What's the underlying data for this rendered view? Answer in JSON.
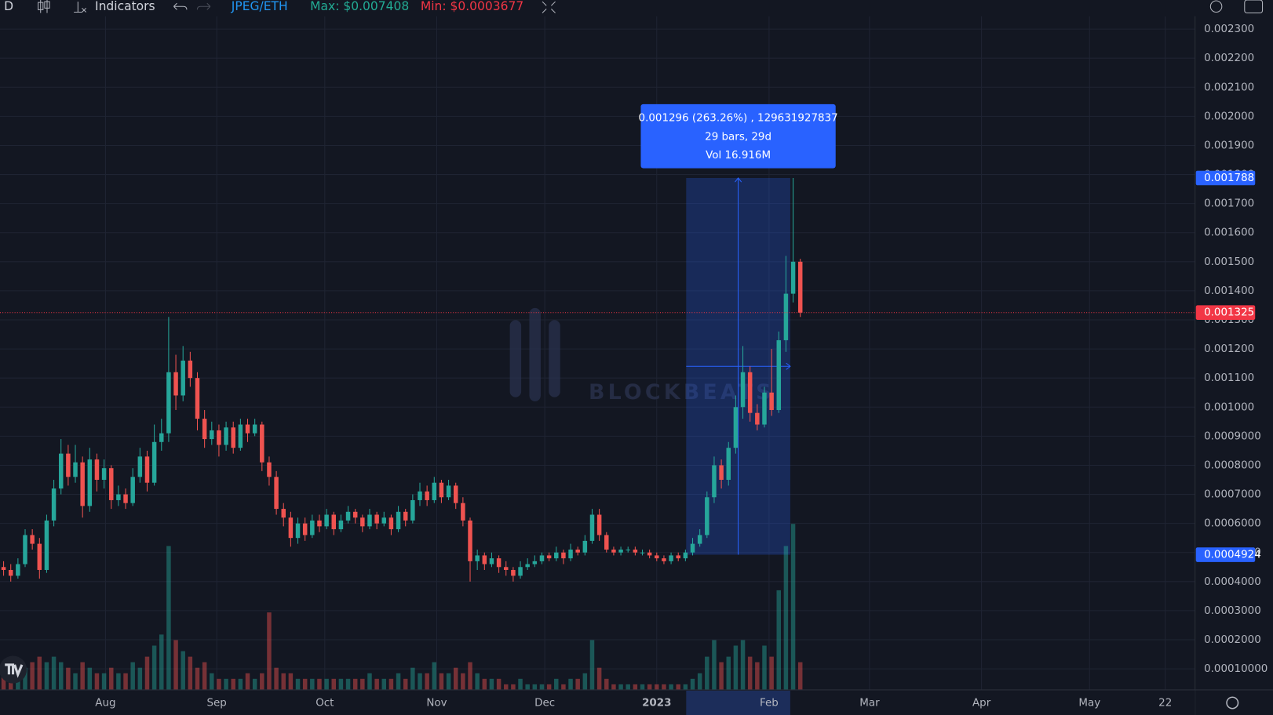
{
  "chart_data": {
    "type": "candlestick",
    "toolbar": {
      "interval": "D",
      "indicators": "Indicators",
      "symbol": "JPEG/ETH",
      "max": "Max: $0.007408",
      "min": "Min: $0.0003677"
    },
    "watermark": "BLOCKBEATS",
    "up_color": "#26a69a",
    "down_color": "#ef5350",
    "xlim": [
      0,
      166.5
    ],
    "xticks": [
      {
        "value": 14.7,
        "label": "Aug"
      },
      {
        "value": 30.2,
        "label": "Sep"
      },
      {
        "value": 45.25,
        "label": "Oct"
      },
      {
        "value": 60.85,
        "label": "Nov"
      },
      {
        "value": 75.9,
        "label": "Dec"
      },
      {
        "value": 91.5,
        "label": "2023"
      },
      {
        "value": 107.15,
        "label": "Feb"
      },
      {
        "value": 121.15,
        "label": "Mar"
      },
      {
        "value": 136.75,
        "label": "Apr"
      },
      {
        "value": 151.8,
        "label": "May"
      },
      {
        "value": 162.35,
        "label": "22"
      }
    ],
    "ylim": [
      2.76e-05,
      0.0024
    ],
    "yticks": [
      {
        "value": 0.0001,
        "label": "0.00010000"
      },
      {
        "value": 0.0002,
        "label": "0.0002000"
      },
      {
        "value": 0.0003,
        "label": "0.0003000"
      },
      {
        "value": 0.0004,
        "label": "0.0004000"
      },
      {
        "value": 0.0005,
        "label": "0.0005000"
      },
      {
        "value": 0.0006,
        "label": "0.0006000"
      },
      {
        "value": 0.0007,
        "label": "0.0007000"
      },
      {
        "value": 0.0008,
        "label": "0.0008000"
      },
      {
        "value": 0.0009,
        "label": "0.0009000"
      },
      {
        "value": 0.001,
        "label": "0.001000"
      },
      {
        "value": 0.0011,
        "label": "0.001100"
      },
      {
        "value": 0.0012,
        "label": "0.001200"
      },
      {
        "value": 0.0013,
        "label": "0.001300"
      },
      {
        "value": 0.0014,
        "label": "0.001400"
      },
      {
        "value": 0.0015,
        "label": "0.001500"
      },
      {
        "value": 0.0016,
        "label": "0.001600"
      },
      {
        "value": 0.0017,
        "label": "0.001700"
      },
      {
        "value": 0.0018,
        "label": "0.001800"
      },
      {
        "value": 0.0019,
        "label": "0.001900"
      },
      {
        "value": 0.002,
        "label": "0.002000"
      },
      {
        "value": 0.0021,
        "label": "0.002100"
      },
      {
        "value": 0.0022,
        "label": "0.002200"
      },
      {
        "value": 0.0023,
        "label": "0.002300"
      }
    ],
    "grid": true,
    "ohlc": [
      [
        0.00045,
        0.00047,
        0.00042,
        0.00044
      ],
      [
        0.00044,
        0.00046,
        0.0004,
        0.00042
      ],
      [
        0.00042,
        0.00048,
        0.00041,
        0.00046
      ],
      [
        0.00046,
        0.00058,
        0.00045,
        0.00056
      ],
      [
        0.00056,
        0.00058,
        0.00051,
        0.00053
      ],
      [
        0.00053,
        0.00055,
        0.00041,
        0.00044
      ],
      [
        0.00044,
        0.00063,
        0.00043,
        0.00061
      ],
      [
        0.00061,
        0.00075,
        0.00059,
        0.00072
      ],
      [
        0.00072,
        0.00089,
        0.0007,
        0.00084
      ],
      [
        0.00084,
        0.00087,
        0.00073,
        0.00076
      ],
      [
        0.00076,
        0.00087,
        0.00074,
        0.00081
      ],
      [
        0.00081,
        0.00083,
        0.00062,
        0.00066
      ],
      [
        0.00066,
        0.00086,
        0.00064,
        0.00082
      ],
      [
        0.00082,
        0.00084,
        0.00071,
        0.00075
      ],
      [
        0.00075,
        0.00082,
        0.00072,
        0.00079
      ],
      [
        0.00079,
        0.0008,
        0.00065,
        0.00068
      ],
      [
        0.00068,
        0.00073,
        0.00066,
        0.0007
      ],
      [
        0.0007,
        0.00072,
        0.00065,
        0.00067
      ],
      [
        0.00067,
        0.00079,
        0.00066,
        0.00076
      ],
      [
        0.00076,
        0.00086,
        0.00074,
        0.00083
      ],
      [
        0.00083,
        0.00085,
        0.00071,
        0.00074
      ],
      [
        0.00074,
        0.00094,
        0.00073,
        0.00088
      ],
      [
        0.00088,
        0.00096,
        0.00085,
        0.00091
      ],
      [
        0.00091,
        0.00131,
        0.00088,
        0.00112
      ],
      [
        0.00112,
        0.00118,
        0.00099,
        0.00104
      ],
      [
        0.00104,
        0.00121,
        0.00102,
        0.00116
      ],
      [
        0.00116,
        0.00119,
        0.00107,
        0.0011
      ],
      [
        0.0011,
        0.00112,
        0.00092,
        0.00096
      ],
      [
        0.00096,
        0.00099,
        0.00086,
        0.00089
      ],
      [
        0.00089,
        0.00095,
        0.00087,
        0.00092
      ],
      [
        0.00092,
        0.00094,
        0.00083,
        0.00087
      ],
      [
        0.00087,
        0.00095,
        0.00085,
        0.00093
      ],
      [
        0.00093,
        0.00095,
        0.00084,
        0.00086
      ],
      [
        0.00086,
        0.00096,
        0.00085,
        0.00094
      ],
      [
        0.00094,
        0.00096,
        0.00088,
        0.00091
      ],
      [
        0.00091,
        0.00096,
        0.0009,
        0.00094
      ],
      [
        0.00094,
        0.00095,
        0.00078,
        0.00081
      ],
      [
        0.00081,
        0.00083,
        0.00073,
        0.00076
      ],
      [
        0.00076,
        0.00078,
        0.00063,
        0.00065
      ],
      [
        0.00065,
        0.00067,
        0.00059,
        0.00062
      ],
      [
        0.00062,
        0.00064,
        0.00052,
        0.00055
      ],
      [
        0.00055,
        0.00062,
        0.00053,
        0.0006
      ],
      [
        0.0006,
        0.00062,
        0.00054,
        0.00056
      ],
      [
        0.00056,
        0.00063,
        0.00055,
        0.00061
      ],
      [
        0.00061,
        0.00063,
        0.00057,
        0.00059
      ],
      [
        0.00059,
        0.00065,
        0.00058,
        0.00063
      ],
      [
        0.00063,
        0.00064,
        0.00056,
        0.00058
      ],
      [
        0.00058,
        0.00063,
        0.00057,
        0.00061
      ],
      [
        0.00061,
        0.00066,
        0.0006,
        0.00064
      ],
      [
        0.00064,
        0.00065,
        0.0006,
        0.00062
      ],
      [
        0.00062,
        0.00063,
        0.00057,
        0.00059
      ],
      [
        0.00059,
        0.00065,
        0.00058,
        0.00063
      ],
      [
        0.00063,
        0.00064,
        0.00058,
        0.0006
      ],
      [
        0.0006,
        0.00064,
        0.00059,
        0.00062
      ],
      [
        0.00062,
        0.00063,
        0.00056,
        0.00058
      ],
      [
        0.00058,
        0.00066,
        0.00057,
        0.00064
      ],
      [
        0.00064,
        0.00065,
        0.00059,
        0.00061
      ],
      [
        0.00061,
        0.0007,
        0.0006,
        0.00068
      ],
      [
        0.00068,
        0.00074,
        0.00066,
        0.00071
      ],
      [
        0.00071,
        0.00073,
        0.00066,
        0.00068
      ],
      [
        0.00068,
        0.00076,
        0.00067,
        0.00074
      ],
      [
        0.00074,
        0.00075,
        0.00067,
        0.00069
      ],
      [
        0.00069,
        0.00075,
        0.00068,
        0.00073
      ],
      [
        0.00073,
        0.00074,
        0.00065,
        0.00067
      ],
      [
        0.00067,
        0.00069,
        0.00059,
        0.00061
      ],
      [
        0.00061,
        0.00062,
        0.0004,
        0.00047
      ],
      [
        0.00047,
        0.00051,
        0.00044,
        0.00049
      ],
      [
        0.00049,
        0.0005,
        0.00044,
        0.00046
      ],
      [
        0.00046,
        0.0005,
        0.00045,
        0.00048
      ],
      [
        0.00048,
        0.00049,
        0.00043,
        0.00045
      ],
      [
        0.00045,
        0.00047,
        0.00042,
        0.00044
      ],
      [
        0.00044,
        0.00045,
        0.0004,
        0.00042
      ],
      [
        0.00042,
        0.00047,
        0.00041,
        0.00045
      ],
      [
        0.00045,
        0.00048,
        0.00044,
        0.00046
      ],
      [
        0.00046,
        0.00049,
        0.00045,
        0.00047
      ],
      [
        0.00047,
        0.0005,
        0.00046,
        0.00049
      ],
      [
        0.00049,
        0.0005,
        0.00047,
        0.00048
      ],
      [
        0.00048,
        0.00052,
        0.00047,
        0.0005
      ],
      [
        0.0005,
        0.00051,
        0.00046,
        0.00048
      ],
      [
        0.00048,
        0.00053,
        0.00047,
        0.00051
      ],
      [
        0.00051,
        0.00052,
        0.00049,
        0.0005
      ],
      [
        0.0005,
        0.00056,
        0.00049,
        0.00054
      ],
      [
        0.00054,
        0.00065,
        0.00053,
        0.00063
      ],
      [
        0.00063,
        0.00065,
        0.00054,
        0.00056
      ],
      [
        0.00056,
        0.00057,
        0.0005,
        0.00051
      ],
      [
        0.00051,
        0.00052,
        0.00049,
        0.0005
      ],
      [
        0.0005,
        0.00052,
        0.00049,
        0.00051
      ],
      [
        0.00051,
        0.00052,
        0.0005,
        0.00051
      ],
      [
        0.00051,
        0.00052,
        0.00049,
        0.0005
      ],
      [
        0.0005,
        0.00051,
        0.00049,
        0.0005
      ],
      [
        0.0005,
        0.00051,
        0.00048,
        0.00049
      ],
      [
        0.00049,
        0.0005,
        0.00047,
        0.00048
      ],
      [
        0.00048,
        0.00049,
        0.00046,
        0.00047
      ],
      [
        0.00047,
        0.0005,
        0.00046,
        0.00049
      ],
      [
        0.00049,
        0.0005,
        0.00047,
        0.00048
      ],
      [
        0.00048,
        0.00051,
        0.00047,
        0.0005
      ],
      [
        0.0005,
        0.00055,
        0.00049,
        0.00053
      ],
      [
        0.00053,
        0.00058,
        0.00052,
        0.00056
      ],
      [
        0.00056,
        0.00071,
        0.00055,
        0.00069
      ],
      [
        0.00069,
        0.00083,
        0.00067,
        0.0008
      ],
      [
        0.0008,
        0.00082,
        0.00072,
        0.00075
      ],
      [
        0.00075,
        0.00088,
        0.00073,
        0.00086
      ],
      [
        0.00086,
        0.00104,
        0.00084,
        0.001
      ],
      [
        0.001,
        0.00121,
        0.00096,
        0.00112
      ],
      [
        0.00112,
        0.00114,
        0.00095,
        0.00098
      ],
      [
        0.00098,
        0.00101,
        0.00092,
        0.00094
      ],
      [
        0.00094,
        0.00107,
        0.00093,
        0.00105
      ],
      [
        0.00105,
        0.0012,
        0.00097,
        0.00099
      ],
      [
        0.00099,
        0.00126,
        0.00098,
        0.00123
      ],
      [
        0.00123,
        0.00152,
        0.00119,
        0.00139
      ],
      [
        0.00139,
        0.001788,
        0.00136,
        0.0015
      ],
      [
        0.0015,
        0.00151,
        0.00131,
        0.001325
      ]
    ],
    "volume": [
      0.4,
      0.3,
      0.5,
      0.4,
      0.5,
      0.6,
      0.5,
      0.6,
      0.5,
      0.4,
      0.3,
      0.5,
      0.4,
      0.3,
      0.3,
      0.4,
      0.3,
      0.3,
      0.5,
      0.4,
      0.6,
      0.8,
      1.0,
      2.6,
      0.9,
      0.7,
      0.6,
      0.4,
      0.5,
      0.3,
      0.2,
      0.2,
      0.2,
      0.2,
      0.3,
      0.2,
      0.3,
      1.4,
      0.4,
      0.3,
      0.3,
      0.2,
      0.2,
      0.2,
      0.2,
      0.2,
      0.2,
      0.2,
      0.2,
      0.2,
      0.2,
      0.3,
      0.2,
      0.2,
      0.2,
      0.3,
      0.2,
      0.4,
      0.3,
      0.3,
      0.5,
      0.3,
      0.3,
      0.4,
      0.3,
      0.5,
      0.3,
      0.2,
      0.2,
      0.2,
      0.1,
      0.1,
      0.2,
      0.1,
      0.1,
      0.1,
      0.1,
      0.2,
      0.1,
      0.2,
      0.2,
      0.3,
      0.9,
      0.4,
      0.2,
      0.1,
      0.1,
      0.1,
      0.1,
      0.1,
      0.1,
      0.1,
      0.1,
      0.1,
      0.1,
      0.1,
      0.2,
      0.3,
      0.6,
      0.9,
      0.5,
      0.6,
      0.8,
      0.9,
      0.6,
      0.5,
      0.8,
      0.6,
      1.8,
      2.6,
      3.0,
      0.5
    ],
    "volume_lim": [
      0,
      4
    ],
    "price_labels": [
      {
        "value": 0.001788,
        "color": "#2962ff"
      },
      {
        "value": 0.001325,
        "color": "#f23645"
      },
      {
        "value": 0.0004924,
        "color": "#2962ff"
      }
    ],
    "measure": {
      "x_from": 95.6,
      "x_to": 110.1,
      "price_from": 0.0004924,
      "price_to": 0.001788,
      "lines": [
        "0.001296 (263.26%) , 129631927837",
        "29 bars, 29d",
        "Vol 16.916M"
      ]
    }
  }
}
